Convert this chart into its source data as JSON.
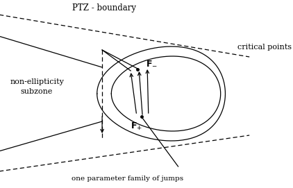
{
  "background_color": "#ffffff",
  "text_color": "#000000",
  "ptb_label": "PTZ - boundary",
  "critical_label": "critical points",
  "non_ellipticity_label": "non-ellipticity\nsubzone",
  "one_param_label": "one parameter family of jumps",
  "lw": 0.9
}
